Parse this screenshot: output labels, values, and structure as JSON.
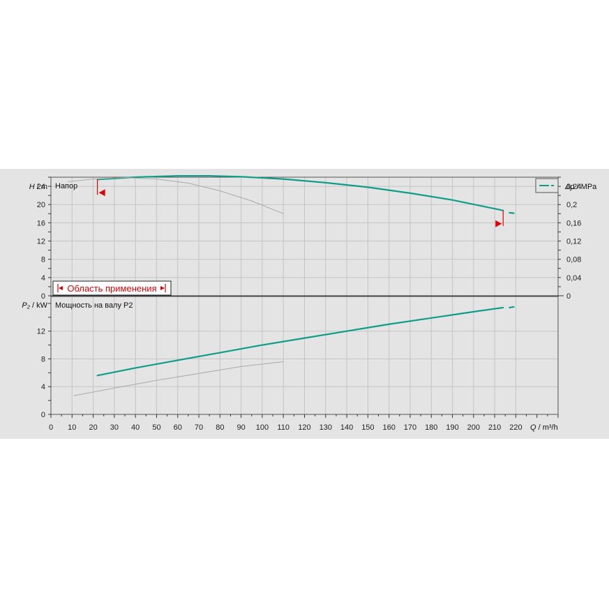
{
  "colors": {
    "background": "#e4e4e4",
    "grid": "#c4c4c4",
    "main_curve": "#0e9e88",
    "secondary_curve": "#a9a9a9",
    "range_marker": "#e00000"
  },
  "chart_data": [
    {
      "type": "line",
      "panel": "head",
      "title": "Напор",
      "ylabel_var": "H",
      "ylabel_unit": "m",
      "y2label_var": "Δp",
      "y2label_unit": "MPa",
      "xlim": [
        0,
        240
      ],
      "ylim": [
        0,
        26
      ],
      "y_ticks": [
        "0",
        "4",
        "8",
        "12",
        "16",
        "20",
        "24"
      ],
      "y2_ticks": [
        "0",
        "0,04",
        "0,08",
        "0,12",
        "0,16",
        "0,2",
        "0,24"
      ],
      "grid": true,
      "legend": "top-right",
      "series": [
        {
          "style": "main",
          "x": [
            22,
            40,
            60,
            75,
            90,
            110,
            130,
            150,
            170,
            190,
            214
          ],
          "y": [
            25.5,
            26.0,
            26.3,
            26.3,
            26.1,
            25.6,
            24.8,
            23.8,
            22.5,
            21.0,
            18.7
          ]
        },
        {
          "style": "main-dashed",
          "x": [
            217,
            219
          ],
          "y": [
            18.2,
            18.1
          ]
        },
        {
          "style": "secondary",
          "x": [
            8,
            20,
            35,
            50,
            65,
            80,
            95,
            110
          ],
          "y": [
            25.0,
            25.6,
            25.9,
            25.6,
            24.7,
            23.0,
            20.8,
            18.0
          ]
        }
      ],
      "operating_range": {
        "label": "Область применения",
        "x_min": 22,
        "x_max": 214
      }
    },
    {
      "type": "line",
      "panel": "power",
      "title": "Мощность на валу P2",
      "ylabel_var": "P₂",
      "ylabel_unit": "kW",
      "xlabel_var": "Q",
      "xlabel_unit": "m³/h",
      "xlim": [
        0,
        240
      ],
      "ylim": [
        0,
        17
      ],
      "x_ticks": [
        "0",
        "10",
        "20",
        "30",
        "40",
        "50",
        "60",
        "70",
        "80",
        "90",
        "100",
        "110",
        "120",
        "130",
        "140",
        "150",
        "160",
        "170",
        "180",
        "190",
        "200",
        "210",
        "220"
      ],
      "y_ticks": [
        "0",
        "4",
        "8",
        "12"
      ],
      "grid": true,
      "series": [
        {
          "style": "main",
          "x": [
            22,
            40,
            60,
            80,
            100,
            120,
            140,
            160,
            180,
            200,
            214
          ],
          "y": [
            5.6,
            6.7,
            7.8,
            8.9,
            10.0,
            11.0,
            12.0,
            13.0,
            13.9,
            14.8,
            15.4
          ]
        },
        {
          "style": "main-dashed",
          "x": [
            217,
            219
          ],
          "y": [
            15.4,
            15.5
          ]
        },
        {
          "style": "secondary",
          "x": [
            11,
            30,
            50,
            70,
            90,
            110
          ],
          "y": [
            2.7,
            3.8,
            4.9,
            5.9,
            6.9,
            7.6
          ]
        }
      ]
    }
  ]
}
